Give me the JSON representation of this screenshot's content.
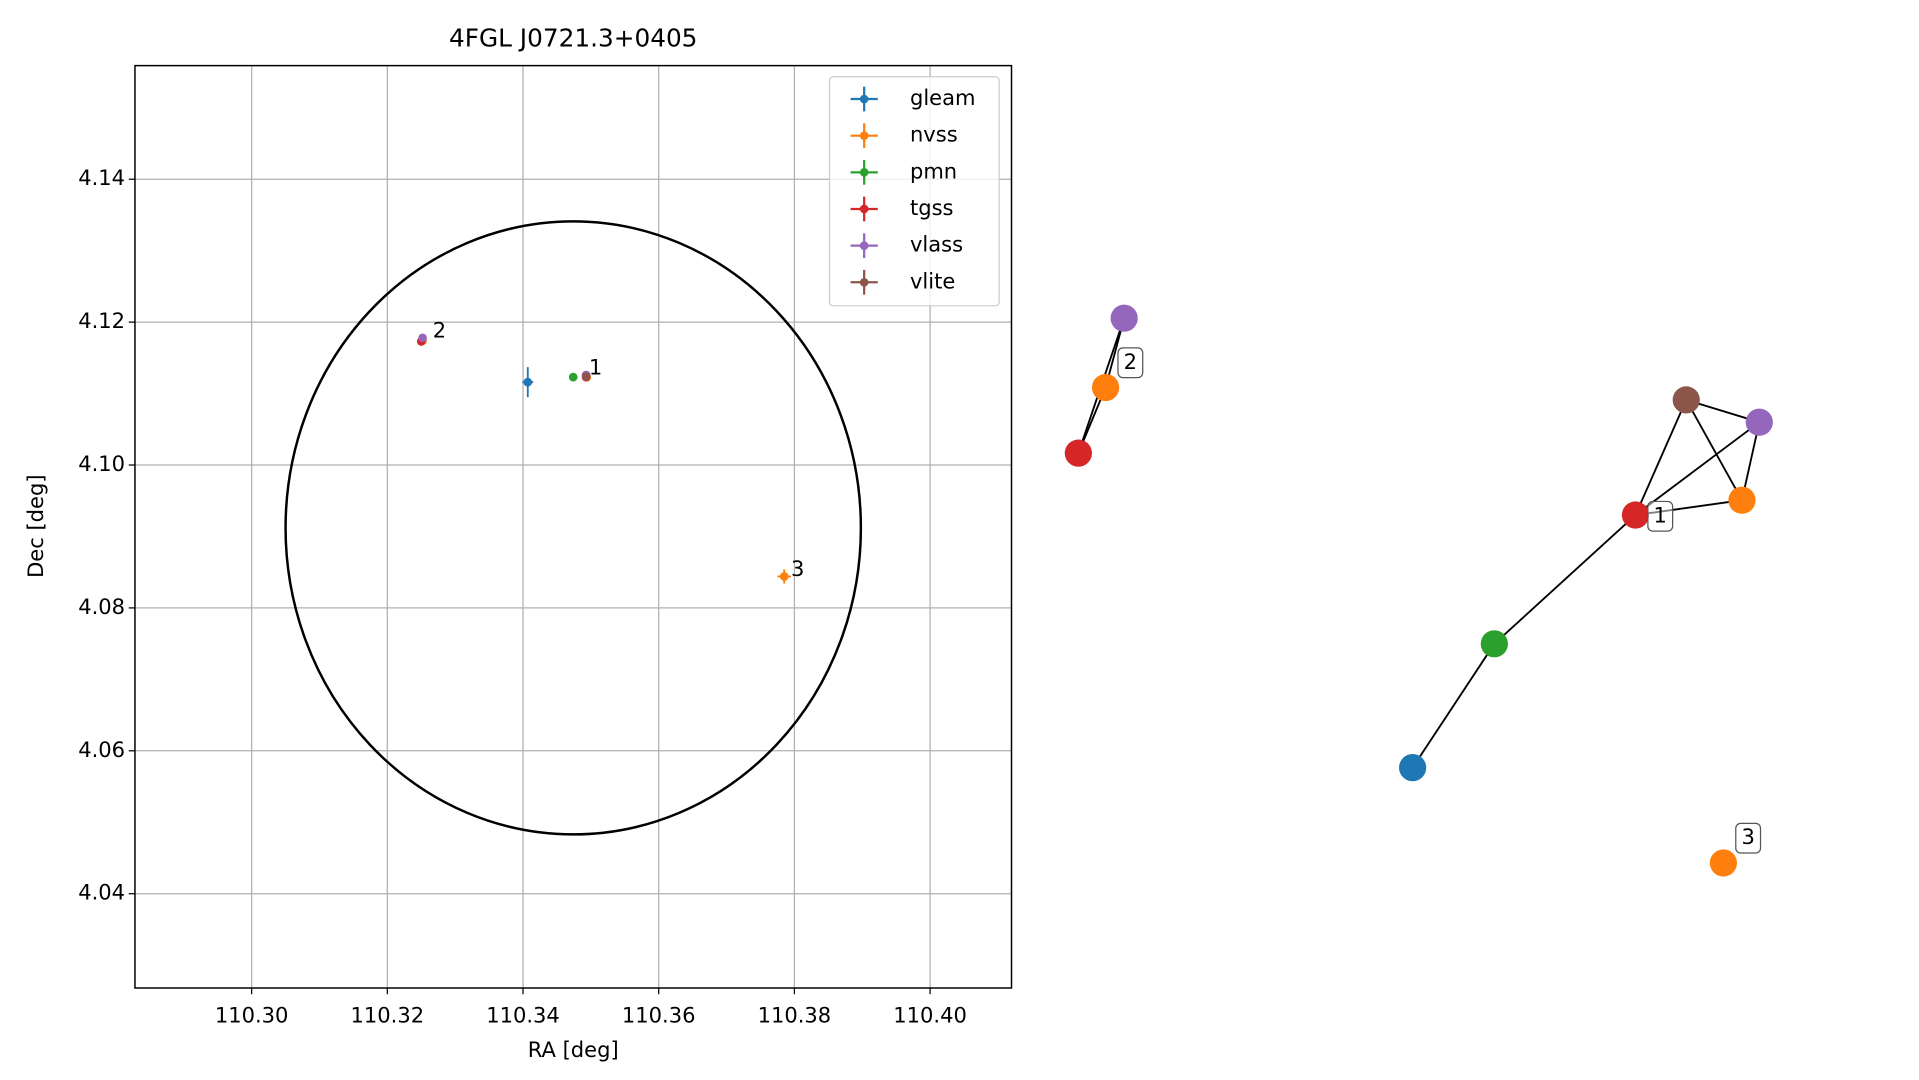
{
  "chart_data": [
    {
      "type": "errorbar-scatter",
      "title": "4FGL J0721.3+0405",
      "x_label": "RA [deg]",
      "y_label": "Dec [deg]",
      "xlim": [
        110.2828,
        110.412
      ],
      "ylim": [
        4.0268,
        4.1559
      ],
      "xticks": [
        {
          "value": 110.3,
          "label": "110.30"
        },
        {
          "value": 110.32,
          "label": "110.32"
        },
        {
          "value": 110.34,
          "label": "110.34"
        },
        {
          "value": 110.36,
          "label": "110.36"
        },
        {
          "value": 110.38,
          "label": "110.38"
        },
        {
          "value": 110.4,
          "label": "110.40"
        }
      ],
      "yticks": [
        4.04,
        4.06,
        4.08,
        {
          "value": 4.1,
          "label": "4.10"
        },
        4.12,
        4.14
      ],
      "grid": true,
      "legend": "upper right",
      "series": [
        {
          "name": "gleam",
          "color": "#1f77b4",
          "x": [
            110.3407
          ],
          "y": [
            4.1116
          ],
          "xerr": [
            0.0008
          ],
          "yerr": [
            0.0021
          ]
        },
        {
          "name": "nvss",
          "color": "#ff7f0e",
          "x": [
            110.3785,
            110.3252,
            110.3494
          ],
          "y": [
            4.0844,
            4.1174,
            4.1123
          ],
          "xerr": [
            0.001,
            0.0003,
            0.0003
          ],
          "yerr": [
            0.001,
            0.0003,
            0.0003
          ]
        },
        {
          "name": "pmn",
          "color": "#2ca02c",
          "x": [
            110.3474
          ],
          "y": [
            4.1123
          ],
          "xerr": [
            0.0004
          ],
          "yerr": [
            0.0004
          ]
        },
        {
          "name": "tgss",
          "color": "#d62728",
          "x": [
            110.325,
            110.3493
          ],
          "y": [
            4.1173,
            4.1123
          ],
          "xerr": [
            0.0004,
            0.0004
          ],
          "yerr": [
            0.0004,
            0.0004
          ]
        },
        {
          "name": "vlass",
          "color": "#9467bd",
          "x": [
            110.3252,
            110.3493
          ],
          "y": [
            4.1178,
            4.1126
          ],
          "xerr": [
            0.0002,
            0.0002
          ],
          "yerr": [
            0.0002,
            0.0002
          ]
        },
        {
          "name": "vlite",
          "color": "#8c564b",
          "x": [
            110.3493
          ],
          "y": [
            4.1124
          ],
          "xerr": [
            0.0003
          ],
          "yerr": [
            0.0003
          ]
        }
      ],
      "region": {
        "ra": 110.3474,
        "dec": 4.0912,
        "ra_radius": 0.0424,
        "dec_radius": 0.0429,
        "color": "#000000"
      },
      "annotations": [
        {
          "text": "1",
          "x": 110.3497,
          "y": 4.1135
        },
        {
          "text": "2",
          "x": 110.3267,
          "y": 4.1187
        },
        {
          "text": "3",
          "x": 110.3795,
          "y": 4.0853
        }
      ]
    },
    {
      "type": "network",
      "nodes": [
        {
          "color": "#d62728"
        },
        {
          "color": "#ff7f0e"
        },
        {
          "color": "#9467bd"
        },
        {
          "color": "#8c564b"
        },
        {
          "color": "#9467bd"
        },
        {
          "color": "#ff7f0e"
        },
        {
          "color": "#d62728"
        },
        {
          "color": "#2ca02c"
        },
        {
          "color": "#1f77b4"
        },
        {
          "color": "#ff7f0e"
        }
      ],
      "edges": [
        [
          0,
          1
        ],
        [
          1,
          2
        ],
        [
          0,
          2
        ],
        [
          3,
          4
        ],
        [
          3,
          5
        ],
        [
          3,
          6
        ],
        [
          4,
          5
        ],
        [
          4,
          6
        ],
        [
          5,
          6
        ],
        [
          6,
          7
        ],
        [
          7,
          8
        ]
      ],
      "labels": [
        {
          "text": "2",
          "node": 1
        },
        {
          "text": "1",
          "node": 6
        },
        {
          "text": "3",
          "node": 9
        }
      ]
    }
  ]
}
